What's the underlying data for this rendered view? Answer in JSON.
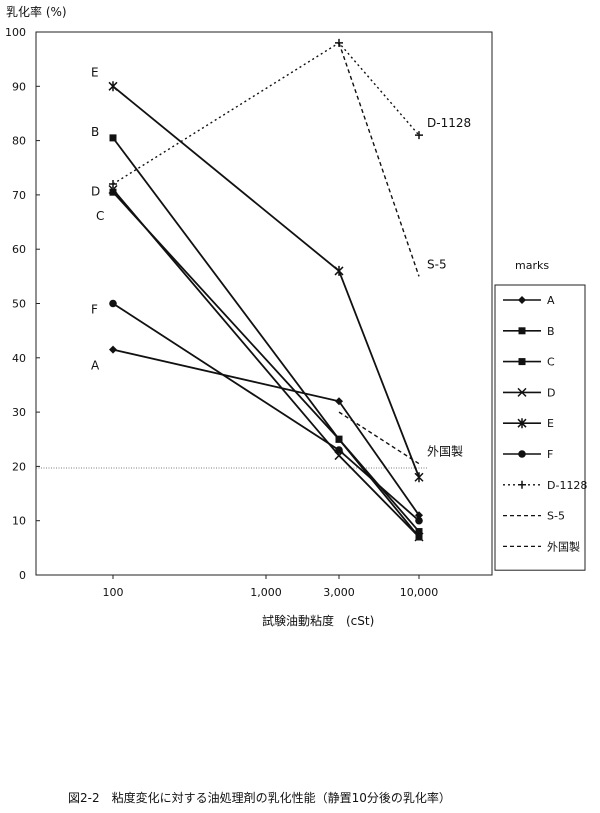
{
  "chart_data": {
    "type": "line",
    "title": "",
    "ylabel": "乳化率 (%)",
    "xlabel": "試験油動粘度　(cSt)",
    "caption": "図2-2　粘度変化に対する油処理剤の乳化性能（静置10分後の乳化率）",
    "x_scale": "log",
    "xlim": [
      100,
      10000
    ],
    "ylim": [
      0,
      100
    ],
    "x_ticks": [
      100,
      1000,
      3000,
      10000
    ],
    "x_tick_labels": [
      "100",
      "1,000",
      "3,000",
      "10,000"
    ],
    "y_ticks": [
      0,
      10,
      20,
      30,
      40,
      50,
      60,
      70,
      80,
      90,
      100
    ],
    "y_tick_labels": [
      "0",
      "10",
      "20",
      "30",
      "40",
      "50",
      "60",
      "70",
      "80",
      "90",
      "100"
    ],
    "reference_line_y": 19.7,
    "legend_title": "marks",
    "legend_position": "right",
    "series": [
      {
        "name": "A",
        "marker": "diamond",
        "dash": "solid",
        "label_side": "left",
        "x": [
          100,
          3000,
          10000
        ],
        "y": [
          41.5,
          32,
          11
        ]
      },
      {
        "name": "B",
        "marker": "square",
        "dash": "solid",
        "label_side": "left",
        "x": [
          100,
          3000,
          10000
        ],
        "y": [
          80.5,
          25,
          8
        ]
      },
      {
        "name": "C",
        "marker": "square",
        "dash": "solid",
        "label_side": "left",
        "x": [
          100,
          3000,
          10000
        ],
        "y": [
          70.5,
          25,
          7
        ]
      },
      {
        "name": "D",
        "marker": "x",
        "dash": "solid",
        "label_side": "left",
        "x": [
          100,
          3000,
          10000
        ],
        "y": [
          71,
          22,
          7
        ]
      },
      {
        "name": "E",
        "marker": "star",
        "dash": "solid",
        "label_side": "left",
        "x": [
          100,
          3000,
          10000
        ],
        "y": [
          90,
          56,
          18
        ]
      },
      {
        "name": "F",
        "marker": "circle",
        "dash": "solid",
        "label_side": "left",
        "x": [
          100,
          3000,
          10000
        ],
        "y": [
          50,
          23,
          10
        ]
      },
      {
        "name": "D-1128",
        "marker": "plus",
        "dash": "dotted",
        "label_side": "right",
        "x": [
          100,
          3000,
          10000
        ],
        "y": [
          72,
          98,
          81
        ]
      },
      {
        "name": "S-5",
        "marker": "none",
        "dash": "dashed",
        "label_side": "right",
        "x": [
          3000,
          10000
        ],
        "y": [
          98,
          55
        ]
      },
      {
        "name": "外国製",
        "marker": "none",
        "dash": "dashed",
        "label_side": "right",
        "x": [
          3000,
          10000
        ],
        "y": [
          30,
          20.5
        ]
      }
    ]
  }
}
